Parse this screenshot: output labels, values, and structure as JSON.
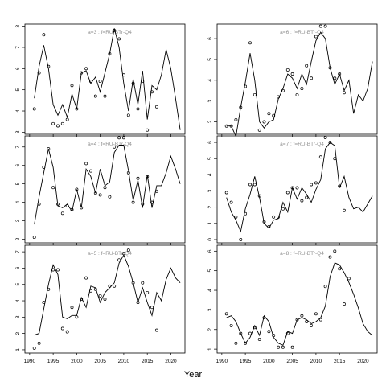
{
  "xlabel": "Year",
  "chart_data": [
    {
      "type": "line",
      "title": "a=3 : f=RU-BTr-Q4",
      "xlabel": "",
      "ylabel": "",
      "xlim": [
        1989,
        2023
      ],
      "ylim": [
        2.9,
        8.1
      ],
      "xticks": [
        1990,
        1995,
        2000,
        2005,
        2010,
        2015,
        2020
      ],
      "yticks": [
        3,
        4,
        5,
        6,
        7,
        8
      ],
      "series": [
        {
          "kind": "line",
          "x": [
            1991,
            1992,
            1993,
            1994,
            1995,
            1996,
            1997,
            1998,
            1999,
            2000,
            2001,
            2002,
            2003,
            2004,
            2005,
            2006,
            2007,
            2008,
            2009,
            2010,
            2011,
            2012,
            2013,
            2014,
            2015,
            2016,
            2017,
            2018,
            2019,
            2020,
            2021,
            2022
          ],
          "y": [
            4.6,
            6.1,
            7.1,
            6.0,
            4.3,
            3.8,
            4.3,
            3.7,
            4.8,
            4.1,
            5.8,
            5.9,
            5.3,
            5.6,
            4.9,
            5.8,
            6.7,
            7.9,
            7.0,
            5.3,
            4.0,
            5.5,
            4.3,
            5.9,
            3.6,
            5.2,
            5.0,
            5.7,
            6.9,
            6.0,
            4.6,
            3.1
          ]
        },
        {
          "kind": "points",
          "x": [
            1991,
            1992,
            1993,
            1994,
            1995,
            1996,
            1997,
            1998,
            1999,
            2000,
            2001,
            2002,
            2003,
            2004,
            2005,
            2006,
            2007,
            2008,
            2009,
            2010,
            2011,
            2012,
            2013,
            2014,
            2015,
            2016,
            2017
          ],
          "y": [
            4.1,
            5.8,
            7.6,
            6.1,
            3.4,
            3.3,
            3.4,
            3.6,
            5.2,
            4.1,
            5.8,
            6.0,
            5.4,
            4.7,
            5.4,
            4.7,
            6.7,
            7.8,
            7.4,
            5.7,
            3.8,
            5.3,
            4.1,
            5.4,
            3.1,
            4.9,
            4.2
          ]
        }
      ]
    },
    {
      "type": "line",
      "title": "a=6 : f=RU-BTr-Q4",
      "xlabel": "",
      "ylabel": "",
      "xlim": [
        1989,
        2023
      ],
      "ylim": [
        1.4,
        6.7
      ],
      "xticks": [
        1990,
        1995,
        2000,
        2005,
        2010,
        2015,
        2020
      ],
      "yticks": [
        2,
        3,
        4,
        5,
        6
      ],
      "series": [
        {
          "kind": "line",
          "x": [
            1991,
            1992,
            1993,
            1994,
            1995,
            1996,
            1997,
            1998,
            1999,
            2000,
            2001,
            2002,
            2003,
            2004,
            2005,
            2006,
            2007,
            2008,
            2009,
            2010,
            2011,
            2012,
            2013,
            2014,
            2015,
            2016,
            2017,
            2018,
            2019,
            2020,
            2021,
            2022
          ],
          "y": [
            1.8,
            1.8,
            1.3,
            2.7,
            3.9,
            5.3,
            4.0,
            2.0,
            1.7,
            2.0,
            2.1,
            3.1,
            3.6,
            4.3,
            4.1,
            3.6,
            4.3,
            3.8,
            4.9,
            5.9,
            6.3,
            6.0,
            4.6,
            3.8,
            4.3,
            3.5,
            4.0,
            2.4,
            3.3,
            3.0,
            3.6,
            4.9
          ]
        },
        {
          "kind": "points",
          "x": [
            1991,
            1992,
            1993,
            1994,
            1995,
            1996,
            1997,
            1998,
            1999,
            2000,
            2001,
            2002,
            2003,
            2004,
            2005,
            2006,
            2007,
            2008,
            2009,
            2010,
            2011,
            2012,
            2013,
            2014,
            2015,
            2016
          ],
          "y": [
            1.8,
            1.8,
            2.1,
            2.7,
            3.7,
            5.8,
            3.3,
            1.6,
            2.0,
            2.4,
            2.3,
            3.2,
            3.5,
            4.5,
            4.3,
            3.3,
            3.6,
            4.7,
            4.1,
            6.1,
            6.6,
            6.6,
            4.6,
            4.1,
            4.3,
            3.4
          ]
        }
      ]
    },
    {
      "type": "line",
      "title": "a=4 : f=RU-BTr-Q4",
      "xlabel": "",
      "ylabel": "",
      "xlim": [
        1989,
        2023
      ],
      "ylim": [
        1.8,
        7.6
      ],
      "xticks": [
        1990,
        1995,
        2000,
        2005,
        2010,
        2015,
        2020
      ],
      "yticks": [
        2,
        3,
        4,
        5,
        6,
        7
      ],
      "series": [
        {
          "kind": "line",
          "x": [
            1991,
            1992,
            1993,
            1994,
            1995,
            1996,
            1997,
            1998,
            1999,
            2000,
            2001,
            2002,
            2003,
            2004,
            2005,
            2006,
            2007,
            2008,
            2009,
            2010,
            2011,
            2012,
            2013,
            2014,
            2015,
            2016,
            2017,
            2018,
            2019,
            2020,
            2021,
            2022
          ],
          "y": [
            2.8,
            4.3,
            5.6,
            6.9,
            5.9,
            3.8,
            3.7,
            3.9,
            3.5,
            4.7,
            3.7,
            5.8,
            5.4,
            4.5,
            5.8,
            4.9,
            5.1,
            6.7,
            7.1,
            7.1,
            5.7,
            4.1,
            5.2,
            3.7,
            5.5,
            3.7,
            4.9,
            4.9,
            5.6,
            6.5,
            5.8,
            5.0
          ]
        },
        {
          "kind": "points",
          "x": [
            1991,
            1992,
            1993,
            1994,
            1995,
            1996,
            1997,
            1998,
            1999,
            2000,
            2001,
            2002,
            2003,
            2004,
            2005,
            2006,
            2007,
            2008,
            2009,
            2010,
            2011,
            2012,
            2013,
            2014,
            2015,
            2016,
            2017
          ],
          "y": [
            2.1,
            3.9,
            5.9,
            6.9,
            4.8,
            3.9,
            3.4,
            3.8,
            3.6,
            4.7,
            3.7,
            6.1,
            5.7,
            4.5,
            4.4,
            4.8,
            4.3,
            7.0,
            7.5,
            7.5,
            5.6,
            4.0,
            5.3,
            3.9,
            5.4,
            4.0,
            4.6
          ]
        }
      ]
    },
    {
      "type": "line",
      "title": "a=7 : f=RU-BTr-Q4",
      "xlabel": "",
      "ylabel": "",
      "xlim": [
        1989,
        2023
      ],
      "ylim": [
        -0.2,
        6.4
      ],
      "xticks": [
        1990,
        1995,
        2000,
        2005,
        2010,
        2015,
        2020
      ],
      "yticks": [
        0,
        1,
        2,
        3,
        4,
        5,
        6
      ],
      "series": [
        {
          "kind": "line",
          "x": [
            1991,
            1992,
            1993,
            1994,
            1995,
            1996,
            1997,
            1998,
            1999,
            2000,
            2001,
            2002,
            2003,
            2004,
            2005,
            2006,
            2007,
            2008,
            2009,
            2010,
            2011,
            2012,
            2013,
            2014,
            2015,
            2016,
            2017,
            2018,
            2019,
            2020,
            2021,
            2022
          ],
          "y": [
            2.6,
            1.7,
            1.2,
            0.5,
            1.9,
            2.8,
            3.9,
            2.6,
            1.0,
            0.7,
            1.2,
            1.3,
            2.3,
            1.7,
            3.2,
            2.5,
            3.2,
            2.8,
            2.3,
            3.1,
            3.7,
            5.6,
            6.0,
            5.8,
            3.2,
            3.9,
            2.6,
            1.9,
            2.0,
            1.7,
            2.2,
            2.7
          ]
        },
        {
          "kind": "points",
          "x": [
            1991,
            1992,
            1993,
            1994,
            1995,
            1996,
            1997,
            1998,
            1999,
            2000,
            2001,
            2002,
            2003,
            2004,
            2005,
            2006,
            2007,
            2008,
            2009,
            2010,
            2011,
            2012,
            2013,
            2014,
            2015,
            2016
          ],
          "y": [
            2.9,
            2.3,
            1.4,
            0.0,
            1.6,
            3.4,
            3.4,
            2.7,
            1.1,
            0.8,
            1.4,
            1.4,
            1.9,
            2.9,
            3.2,
            3.2,
            2.4,
            2.6,
            3.4,
            3.5,
            5.1,
            6.3,
            6.0,
            5.0,
            3.3,
            1.8
          ]
        }
      ]
    },
    {
      "type": "line",
      "title": "a=5 : f=RU-BTr-Q4",
      "xlabel": "",
      "ylabel": "",
      "xlim": [
        1989,
        2023
      ],
      "ylim": [
        0.8,
        7.4
      ],
      "xticks": [
        1990,
        1995,
        2000,
        2005,
        2010,
        2015,
        2020
      ],
      "yticks": [
        1,
        2,
        3,
        4,
        5,
        6,
        7
      ],
      "series": [
        {
          "kind": "line",
          "x": [
            1991,
            1992,
            1993,
            1994,
            1995,
            1996,
            1997,
            1998,
            1999,
            2000,
            2001,
            2002,
            2003,
            2004,
            2005,
            2006,
            2007,
            2008,
            2009,
            2010,
            2011,
            2012,
            2013,
            2014,
            2015,
            2016,
            2017,
            2018,
            2019,
            2020,
            2021,
            2022
          ],
          "y": [
            1.9,
            2.0,
            3.5,
            5.0,
            6.2,
            5.6,
            3.0,
            2.9,
            3.1,
            3.1,
            4.2,
            3.6,
            4.9,
            4.8,
            3.9,
            4.5,
            4.8,
            5.1,
            6.3,
            6.8,
            6.1,
            5.1,
            3.9,
            4.8,
            3.9,
            3.1,
            4.5,
            4.0,
            5.3,
            6.0,
            5.4,
            5.1
          ]
        },
        {
          "kind": "points",
          "x": [
            1991,
            1992,
            1993,
            1994,
            1995,
            1996,
            1997,
            1998,
            1999,
            2000,
            2001,
            2002,
            2003,
            2004,
            2005,
            2006,
            2007,
            2008,
            2009,
            2010,
            2011,
            2012,
            2013,
            2014,
            2015,
            2016,
            2017
          ],
          "y": [
            1.1,
            1.4,
            3.9,
            4.7,
            5.9,
            5.9,
            2.3,
            2.1,
            3.6,
            3.0,
            4.1,
            5.4,
            4.6,
            4.7,
            4.3,
            4.1,
            4.9,
            4.9,
            6.5,
            6.9,
            7.1,
            5.1,
            3.9,
            5.1,
            4.5,
            3.6,
            2.2
          ]
        }
      ]
    },
    {
      "type": "line",
      "title": "a=8 : f=RU-BTr-Q4",
      "xlabel": "",
      "ylabel": "",
      "xlim": [
        1989,
        2023
      ],
      "ylim": [
        0.8,
        6.3
      ],
      "xticks": [
        1990,
        1995,
        2000,
        2005,
        2010,
        2015,
        2020
      ],
      "yticks": [
        1,
        2,
        3,
        4,
        5,
        6
      ],
      "series": [
        {
          "kind": "line",
          "x": [
            1991,
            1992,
            1993,
            1994,
            1995,
            1996,
            1997,
            1998,
            1999,
            2000,
            2001,
            2002,
            2003,
            2004,
            2005,
            2006,
            2007,
            2008,
            2009,
            2010,
            2011,
            2012,
            2013,
            2014,
            2015,
            2016,
            2017,
            2018,
            2019,
            2020,
            2021,
            2022
          ],
          "y": [
            2.6,
            2.7,
            2.4,
            1.8,
            1.3,
            1.6,
            2.2,
            1.7,
            2.7,
            2.4,
            1.6,
            1.3,
            1.2,
            1.9,
            1.8,
            2.5,
            2.6,
            2.5,
            2.3,
            2.4,
            2.6,
            3.2,
            4.7,
            5.4,
            5.3,
            4.9,
            4.4,
            3.8,
            3.1,
            2.3,
            1.9,
            1.7
          ]
        },
        {
          "kind": "points",
          "x": [
            1991,
            1992,
            1993,
            1994,
            1995,
            1996,
            1997,
            1998,
            1999,
            2000,
            2001,
            2002,
            2003,
            2004,
            2005,
            2006,
            2007,
            2008,
            2009,
            2010,
            2011,
            2012,
            2013,
            2014,
            2015,
            2016,
            2017
          ],
          "y": [
            2.8,
            2.2,
            1.3,
            1.8,
            1.3,
            1.8,
            2.1,
            1.5,
            2.6,
            1.9,
            1.7,
            1.1,
            1.1,
            1.8,
            1.1,
            2.5,
            2.7,
            2.4,
            2.2,
            2.8,
            2.5,
            4.2,
            5.7,
            6.0,
            5.1,
            3.3,
            4.6
          ]
        }
      ]
    }
  ]
}
